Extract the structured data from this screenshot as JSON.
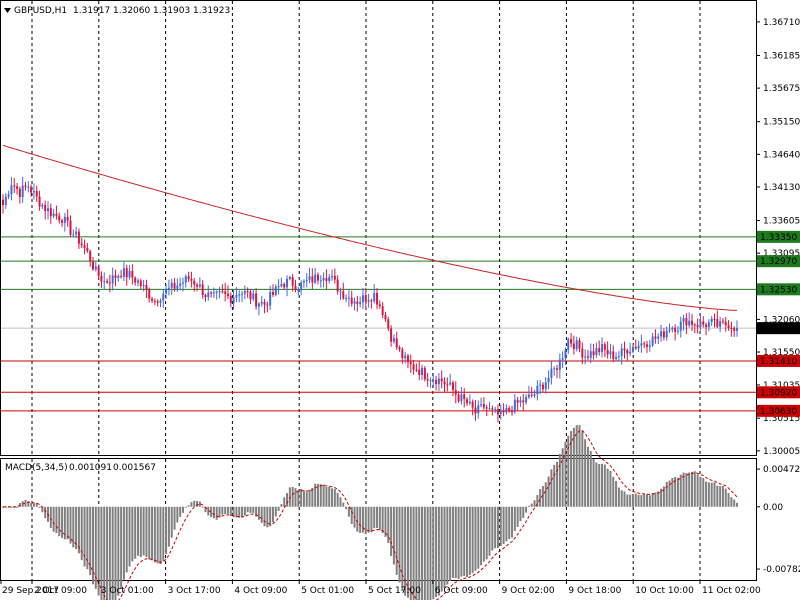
{
  "header": {
    "symbol": "GBPUSD,H1",
    "open": "1.31917",
    "high": "1.32060",
    "low": "1.31903",
    "close": "1.31923",
    "dropdown_icon": "triangle-down-icon"
  },
  "macd_header": {
    "label": "MACD(5,34,5)",
    "main": "0.001091",
    "signal": "0.001567"
  },
  "colors": {
    "bull": "#4169e1",
    "bear": "#dc143c",
    "ma": "#cc2222",
    "support": "#cc0000",
    "resistance": "#1e7a1e",
    "histogram": "#808080",
    "signal": "#cc0000",
    "grid": "#000000"
  },
  "price_axis": {
    "ticks": [
      "1.36710",
      "1.36185",
      "1.35675",
      "1.35150",
      "1.34640",
      "1.34130",
      "1.33605",
      "1.33095",
      "1.32570",
      "1.32060",
      "1.31550",
      "1.31035",
      "1.30515",
      "1.30005"
    ],
    "min": 1.2994,
    "max": 1.3699
  },
  "levels": {
    "resistance": [
      "1.33350",
      "1.32970",
      "1.32530"
    ],
    "support": [
      "1.31410",
      "1.30920",
      "1.30630"
    ],
    "current": "1.31923"
  },
  "macd_axis": {
    "ticks": [
      "0.004727",
      "0.00",
      "-0.007826"
    ],
    "max": 0.006,
    "min": -0.0092
  },
  "time_axis": {
    "labels": [
      "29 Sep 2017",
      "2 Oct 09:00",
      "3 Oct 01:00",
      "3 Oct 17:00",
      "4 Oct 09:00",
      "5 Oct 01:00",
      "5 Oct 17:00",
      "6 Oct 09:00",
      "9 Oct 02:00",
      "9 Oct 18:00",
      "10 Oct 10:00",
      "11 Oct 02:00"
    ]
  },
  "chart_data": {
    "type": "candlestick",
    "symbol": "GBPUSD",
    "timeframe": "H1",
    "anchors": [
      [
        0,
        1.3385
      ],
      [
        3,
        1.342
      ],
      [
        6,
        1.3405
      ],
      [
        9,
        1.3415
      ],
      [
        12,
        1.3395
      ],
      [
        15,
        1.338
      ],
      [
        18,
        1.337
      ],
      [
        21,
        1.3365
      ],
      [
        24,
        1.3345
      ],
      [
        27,
        1.333
      ],
      [
        30,
        1.331
      ],
      [
        33,
        1.328
      ],
      [
        36,
        1.3265
      ],
      [
        39,
        1.327
      ],
      [
        42,
        1.328
      ],
      [
        45,
        1.3275
      ],
      [
        48,
        1.3265
      ],
      [
        51,
        1.325
      ],
      [
        54,
        1.3235
      ],
      [
        57,
        1.3248
      ],
      [
        60,
        1.3255
      ],
      [
        63,
        1.3262
      ],
      [
        66,
        1.327
      ],
      [
        69,
        1.3262
      ],
      [
        72,
        1.3245
      ],
      [
        75,
        1.324
      ],
      [
        78,
        1.3245
      ],
      [
        81,
        1.324
      ],
      [
        84,
        1.325
      ],
      [
        87,
        1.3245
      ],
      [
        90,
        1.3235
      ],
      [
        93,
        1.323
      ],
      [
        96,
        1.3245
      ],
      [
        99,
        1.3262
      ],
      [
        102,
        1.3265
      ],
      [
        105,
        1.3258
      ],
      [
        108,
        1.3265
      ],
      [
        111,
        1.327
      ],
      [
        114,
        1.3278
      ],
      [
        117,
        1.3268
      ],
      [
        120,
        1.325
      ],
      [
        123,
        1.324
      ],
      [
        126,
        1.3235
      ],
      [
        129,
        1.324
      ],
      [
        132,
        1.3245
      ],
      [
        135,
        1.322
      ],
      [
        138,
        1.318
      ],
      [
        141,
        1.3155
      ],
      [
        144,
        1.3135
      ],
      [
        147,
        1.313
      ],
      [
        150,
        1.312
      ],
      [
        153,
        1.3115
      ],
      [
        156,
        1.311
      ],
      [
        159,
        1.31
      ],
      [
        162,
        1.3085
      ],
      [
        165,
        1.3075
      ],
      [
        168,
        1.306
      ],
      [
        171,
        1.307
      ],
      [
        174,
        1.306
      ],
      [
        177,
        1.3055
      ],
      [
        180,
        1.3065
      ],
      [
        183,
        1.3075
      ],
      [
        186,
        1.308
      ],
      [
        189,
        1.309
      ],
      [
        192,
        1.3105
      ],
      [
        195,
        1.312
      ],
      [
        198,
        1.314
      ],
      [
        201,
        1.3175
      ],
      [
        204,
        1.3165
      ],
      [
        207,
        1.315
      ],
      [
        210,
        1.3155
      ],
      [
        213,
        1.316
      ],
      [
        216,
        1.315
      ],
      [
        219,
        1.315
      ],
      [
        222,
        1.316
      ],
      [
        225,
        1.3165
      ],
      [
        228,
        1.317
      ],
      [
        231,
        1.3175
      ],
      [
        234,
        1.318
      ],
      [
        237,
        1.3195
      ],
      [
        240,
        1.3195
      ],
      [
        243,
        1.3205
      ],
      [
        246,
        1.32
      ],
      [
        249,
        1.3198
      ],
      [
        252,
        1.32
      ],
      [
        255,
        1.3195
      ],
      [
        258,
        1.32
      ],
      [
        261,
        1.3192
      ]
    ],
    "ma": {
      "start": 1.3478,
      "end": 1.322
    }
  }
}
